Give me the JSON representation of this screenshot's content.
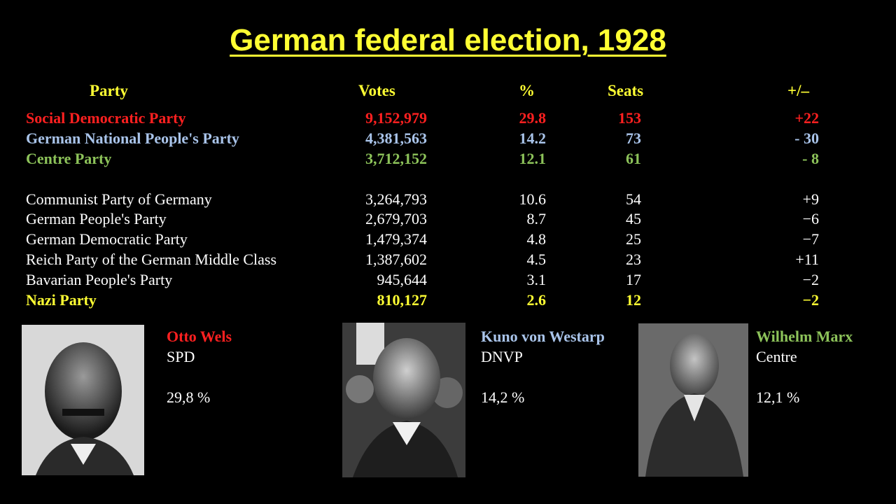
{
  "title": "German federal election, 1928",
  "headers": {
    "party": "Party",
    "votes": "Votes",
    "percent": "%",
    "seats": "Seats",
    "change": "+/–"
  },
  "rows": [
    {
      "party": "Social Democratic Party",
      "votes": "9,152,979",
      "percent": "29.8",
      "seats": "153",
      "change": "+22",
      "color": "#ff2020",
      "bold": true
    },
    {
      "party": "German National People's Party",
      "votes": "4,381,563",
      "percent": "14.2",
      "seats": "73",
      "change": "- 30",
      "color": "#a9c4ea",
      "bold": true
    },
    {
      "party": "Centre Party",
      "votes": "3,712,152",
      "percent": "12.1",
      "seats": "61",
      "change": "- 8",
      "color": "#8dc35a",
      "bold": true
    },
    {
      "party": "Communist Party of Germany",
      "votes": "3,264,793",
      "percent": "10.6",
      "seats": "54",
      "change": "+9",
      "color": "#ffffff",
      "bold": false
    },
    {
      "party": "German People's Party",
      "votes": "2,679,703",
      "percent": "8.7",
      "seats": "45",
      "change": "−6",
      "color": "#ffffff",
      "bold": false
    },
    {
      "party": "German Democratic Party",
      "votes": "1,479,374",
      "percent": "4.8",
      "seats": "25",
      "change": "−7",
      "color": "#ffffff",
      "bold": false
    },
    {
      "party": "Reich Party of the German Middle Class",
      "votes": "1,387,602",
      "percent": "4.5",
      "seats": "23",
      "change": "+11",
      "color": "#ffffff",
      "bold": false
    },
    {
      "party": "Bavarian People's Party",
      "votes": "945,644",
      "percent": "3.1",
      "seats": "17",
      "change": "−2",
      "color": "#ffffff",
      "bold": false
    },
    {
      "party": "Nazi Party",
      "votes": "810,127",
      "percent": "2.6",
      "seats": "12",
      "change": "−2",
      "color": "#ffff33",
      "bold": true
    }
  ],
  "leaders": [
    {
      "name": "Otto Wels",
      "party": "SPD",
      "share": "29,8 %",
      "color": "#ff2020",
      "photo": "portrait-otto-wels"
    },
    {
      "name": "Kuno von Westarp",
      "party": "DNVP",
      "share": "14,2 %",
      "color": "#a9c4ea",
      "photo": "portrait-kuno-von-westarp"
    },
    {
      "name": "Wilhelm Marx",
      "party": "Centre",
      "share": "12,1 %",
      "color": "#8dc35a",
      "photo": "portrait-wilhelm-marx"
    }
  ]
}
